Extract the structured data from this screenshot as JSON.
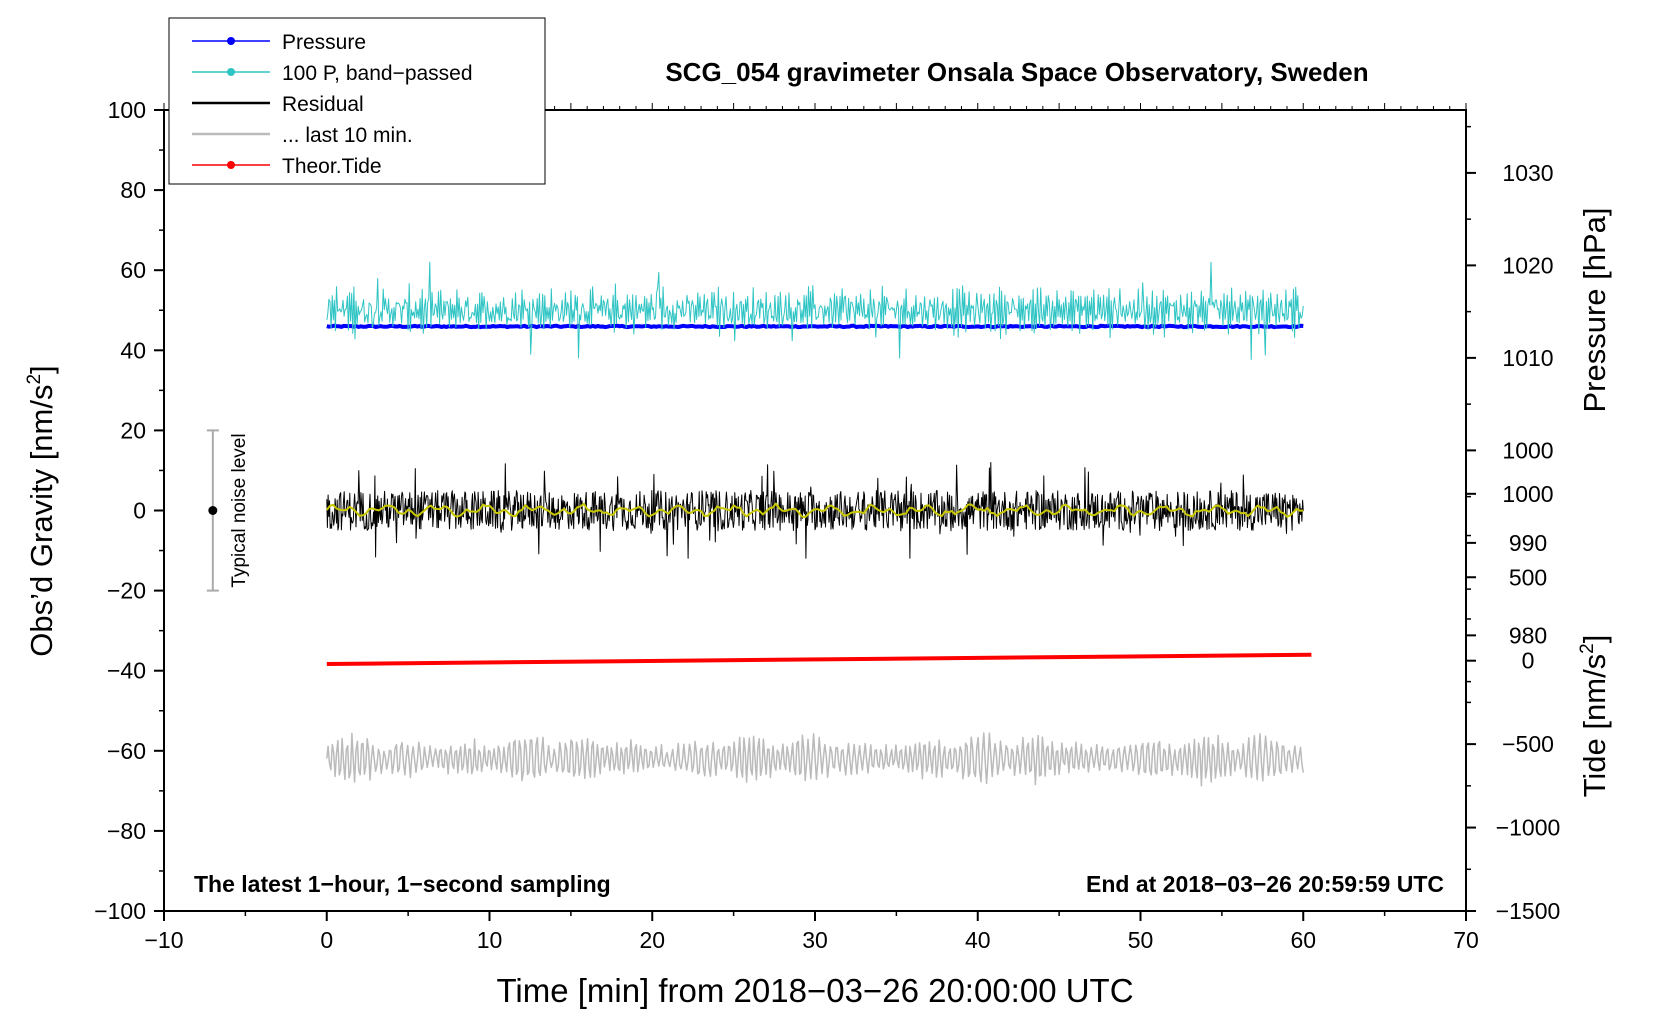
{
  "chart_data": {
    "type": "line",
    "title": "SCG_054 gravimeter Onsala Space Observatory, Sweden",
    "xlabel": "Time [min] from 2018−03−26 20:00:00 UTC",
    "ylabel": "Obs’d Gravity [nm/s",
    "ylabel_sup": "2",
    "ylabel_end": "]",
    "y2label": "Pressure [hPa]",
    "y3label": "Tide [nm/s",
    "y3label_sup": "2",
    "y3label_end": "]",
    "xlim": [
      -10,
      70
    ],
    "ylim": [
      -100,
      100
    ],
    "x_ticks": [
      "−10",
      "0",
      "10",
      "20",
      "30",
      "40",
      "50",
      "60",
      "70"
    ],
    "y_ticks": [
      "−100",
      "−80",
      "−60",
      "−40",
      "−20",
      "0",
      "20",
      "40",
      "60",
      "80",
      "100"
    ],
    "pressure_axis": {
      "ticks": [
        "980",
        "990",
        "1000",
        "1010",
        "1020",
        "1030"
      ],
      "values": [
        980,
        990,
        1000,
        1010,
        1020,
        1030
      ],
      "ylim": [
        950.2,
        1036.8
      ]
    },
    "tide_axis": {
      "ticks": [
        "−1500",
        "−1000",
        "−500",
        "0",
        "500",
        "1000"
      ],
      "values": [
        -1500,
        -1000,
        -500,
        0,
        500,
        1000
      ],
      "ylim": [
        -1500,
        3300
      ]
    },
    "annotations": {
      "bottom_left": "The latest 1−hour, 1−second sampling",
      "bottom_right": "End at 2018−03−26 20:59:59 UTC",
      "noise_label": "Typical noise level"
    },
    "noise_bar": {
      "x": -7,
      "center": 0,
      "low": -20,
      "high": 20
    },
    "legend": [
      {
        "label": "Pressure",
        "color": "#0000ff",
        "marker": true
      },
      {
        "label": "100 P, band−passed",
        "color": "#2fc4c4",
        "marker": true
      },
      {
        "label": "Residual",
        "color": "#000000",
        "marker": false
      },
      {
        "label": "... last 10 min.",
        "color": "#bbbbbb",
        "marker": false
      },
      {
        "label": "Theor.Tide",
        "color": "#ff0000",
        "marker": true
      }
    ],
    "series": [
      {
        "name": "Pressure",
        "axis": "pressure",
        "x_range": [
          0,
          60
        ],
        "level": 1013.4,
        "noise": 0.15,
        "color": "#0000ff"
      },
      {
        "name": "100 P, band-passed",
        "axis": "gravity",
        "x_range": [
          0,
          60
        ],
        "level": 50,
        "amplitude": 12,
        "color": "#2fc4c4"
      },
      {
        "name": "Residual",
        "axis": "gravity",
        "x_range": [
          0,
          60
        ],
        "level": 0,
        "amplitude": 12,
        "color": "#000000"
      },
      {
        "name": "Residual smoothed",
        "axis": "gravity",
        "x_range": [
          0,
          60
        ],
        "level": 0,
        "amplitude": 2,
        "color": "#c8c800"
      },
      {
        "name": "... last 10 min.",
        "axis": "gravity",
        "x_range": [
          0,
          60
        ],
        "level": -62,
        "amplitude": 12,
        "color": "#bbbbbb"
      },
      {
        "name": "Theor.Tide",
        "axis": "tide",
        "x": [
          0,
          60.5
        ],
        "values": [
          -20,
          35
        ],
        "color": "#ff0000"
      }
    ]
  }
}
